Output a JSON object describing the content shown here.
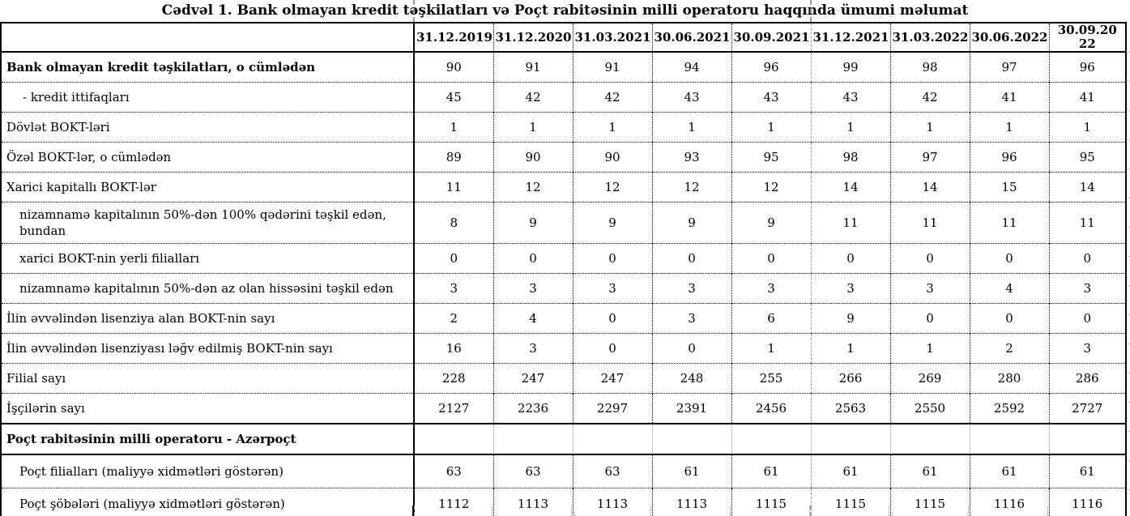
{
  "title": "Cədvəl 1. Bank olmayan kredit təşkilatları və Poçt rabitəsinin milli operatoru haqqında ümumi məlumat",
  "table": {
    "columns": [
      "31.12.2019",
      "31.12.2020",
      "31.03.2021",
      "30.06.2021",
      "30.09.2021",
      "31.12.2021",
      "31.03.2022",
      "30.06.2022",
      "30.09.2022"
    ],
    "rows": [
      {
        "label": "Bank olmayan kredit təşkilatları, o cümlədən",
        "values": [
          "90",
          "91",
          "91",
          "94",
          "96",
          "99",
          "98",
          "97",
          "96"
        ]
      },
      {
        "label": "- kredit ittifaqları",
        "values": [
          "45",
          "42",
          "42",
          "43",
          "43",
          "43",
          "42",
          "41",
          "41"
        ]
      },
      {
        "label": "Dövlət BOKT-ləri",
        "values": [
          "1",
          "1",
          "1",
          "1",
          "1",
          "1",
          "1",
          "1",
          "1"
        ]
      },
      {
        "label": "Özəl BOKT-lər, o cümlədən",
        "values": [
          "89",
          "90",
          "90",
          "93",
          "95",
          "98",
          "97",
          "96",
          "95"
        ]
      },
      {
        "label": "Xarici kapitallı BOKT-lər",
        "values": [
          "11",
          "12",
          "12",
          "12",
          "12",
          "14",
          "14",
          "15",
          "14"
        ]
      },
      {
        "label": "nizamnamə kapitalının 50%-dən 100% qədərini təşkil edən, bundan",
        "values": [
          "8",
          "9",
          "9",
          "9",
          "9",
          "11",
          "11",
          "11",
          "11"
        ]
      },
      {
        "label": "xarici BOKT-nin yerli filialları",
        "values": [
          "0",
          "0",
          "0",
          "0",
          "0",
          "0",
          "0",
          "0",
          "0"
        ]
      },
      {
        "label": "nizamnamə kapitalının 50%-dən az olan hissəsini təşkil edən",
        "values": [
          "3",
          "3",
          "3",
          "3",
          "3",
          "3",
          "3",
          "4",
          "3"
        ]
      },
      {
        "label": "İlin əvvəlindən lisenziya alan BOKT-nin sayı",
        "values": [
          "2",
          "4",
          "0",
          "3",
          "6",
          "9",
          "0",
          "0",
          "0"
        ]
      },
      {
        "label": "İlin əvvəlindən lisenziyası ləğv edilmiş BOKT-nin sayı",
        "values": [
          "16",
          "3",
          "0",
          "0",
          "1",
          "1",
          "1",
          "2",
          "3"
        ]
      },
      {
        "label": "Filial sayı",
        "values": [
          "228",
          "247",
          "247",
          "248",
          "255",
          "266",
          "269",
          "280",
          "286"
        ]
      },
      {
        "label": "İşçilərin sayı",
        "values": [
          "2127",
          "2236",
          "2297",
          "2391",
          "2456",
          "2563",
          "2550",
          "2592",
          "2727"
        ]
      },
      {
        "label": "Poçt rabitəsinin milli operatoru - Azərpoçt",
        "values": [
          "",
          "",
          "",
          "",
          "",
          "",
          "",
          "",
          ""
        ]
      },
      {
        "label": "Poçt filialları (maliyyə xidmətləri göstərən)",
        "values": [
          "63",
          "63",
          "63",
          "61",
          "61",
          "61",
          "61",
          "61",
          "61"
        ]
      },
      {
        "label": "Poçt şöbələri (maliyyə xidmətləri göstərən)",
        "values": [
          "1112",
          "1113",
          "1113",
          "1113",
          "1115",
          "1115",
          "1115",
          "1116",
          "1116"
        ]
      }
    ]
  }
}
